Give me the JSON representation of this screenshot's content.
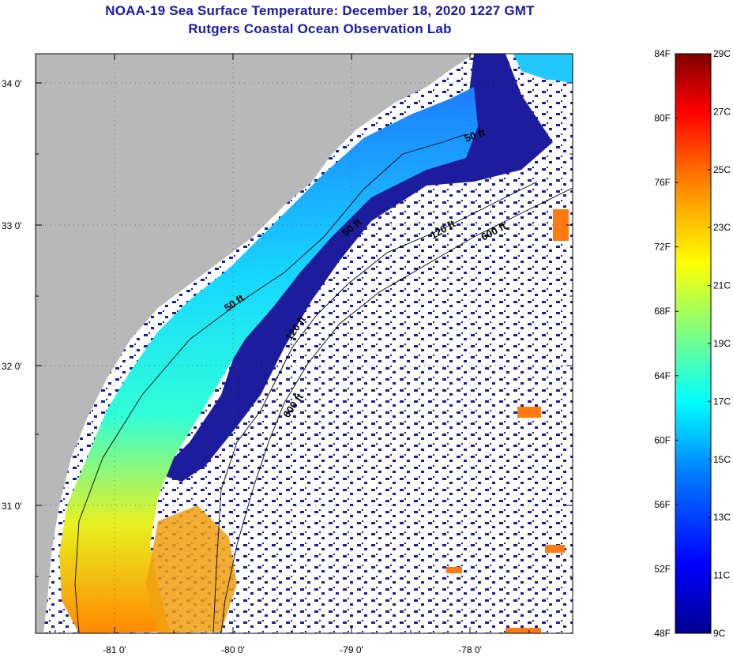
{
  "title": {
    "line1": "NOAA-19 Sea Surface Temperature:  December 18, 2020 1227 GMT",
    "line2": "Rutgers Coastal Ocean Observation Lab"
  },
  "map": {
    "lat_labels": [
      "34 0'",
      "33 0'",
      "32 0'",
      "31 0'"
    ],
    "lon_labels": [
      "-81 0'",
      "-80 0'",
      "-79 0'",
      "-78 0'"
    ],
    "contour_labels": [
      "50 ft",
      "120 ft",
      "600 ft",
      "50 ft",
      "120 ft",
      "600 ft",
      "50 ft"
    ],
    "colors": {
      "land": "#b8b8b8",
      "cloud": "#ffffff",
      "cold_water": "#1c1c9c"
    }
  },
  "colorbar": {
    "fahrenheit": [
      "84F",
      "80F",
      "76F",
      "72F",
      "68F",
      "64F",
      "60F",
      "56F",
      "52F",
      "48F"
    ],
    "celsius": [
      "29C",
      "27C",
      "25C",
      "23C",
      "21C",
      "19C",
      "17C",
      "15C",
      "13C",
      "11C",
      "9C"
    ],
    "scale_stops": [
      "#00008f",
      "#0000ff",
      "#0080ff",
      "#00ffff",
      "#80ff80",
      "#ffff00",
      "#ff8000",
      "#ff0000",
      "#800000"
    ]
  }
}
